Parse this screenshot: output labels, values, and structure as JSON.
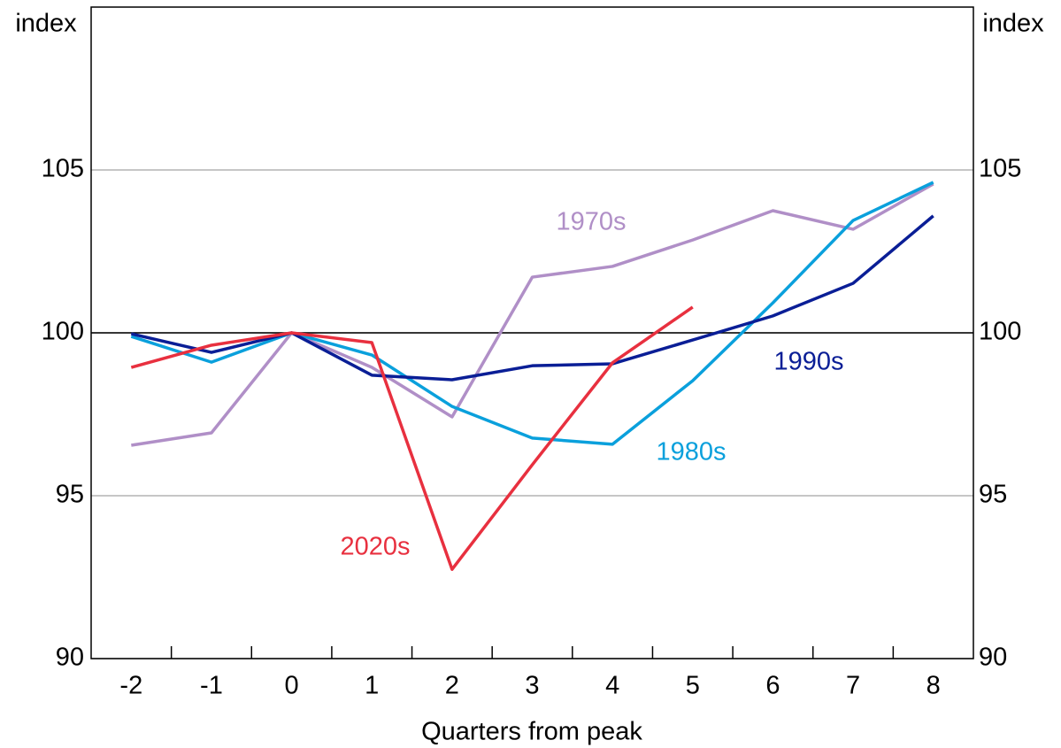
{
  "chart_data": {
    "type": "line",
    "y_label": "index",
    "y2_label": "index",
    "x_label": "Quarters from peak",
    "x": [
      -2,
      -1,
      0,
      1,
      2,
      3,
      4,
      5,
      6,
      7,
      8
    ],
    "xlim": [
      -2.5,
      8.5
    ],
    "xticks": [
      -2,
      -1,
      0,
      1,
      2,
      3,
      4,
      5,
      6,
      7,
      8
    ],
    "ylim": [
      90,
      110
    ],
    "yticks": [
      90,
      95,
      100,
      105
    ],
    "y2lim": [
      90,
      110
    ],
    "y2ticks": [
      90,
      95,
      100,
      105
    ],
    "grid": true,
    "reference_line": 100,
    "series": [
      {
        "name": "1970s",
        "color": "#b08fc7",
        "values": [
          96.55,
          96.93,
          100,
          98.94,
          97.42,
          101.71,
          102.04,
          102.85,
          103.75,
          103.18,
          104.57
        ]
      },
      {
        "name": "1980s",
        "color": "#0aa0dc",
        "values": [
          99.89,
          99.1,
          100,
          99.32,
          97.74,
          96.77,
          96.58,
          98.53,
          100.92,
          103.45,
          104.62
        ]
      },
      {
        "name": "1990s",
        "color": "#0a1e96",
        "values": [
          99.97,
          99.4,
          100,
          98.7,
          98.56,
          98.99,
          99.05,
          99.78,
          100.52,
          101.52,
          103.59
        ]
      },
      {
        "name": "2020s",
        "color": "#e8303f",
        "values": [
          98.94,
          99.62,
          100,
          99.7,
          92.74,
          95.95,
          99.08,
          100.79,
          null,
          null,
          null
        ]
      }
    ]
  }
}
